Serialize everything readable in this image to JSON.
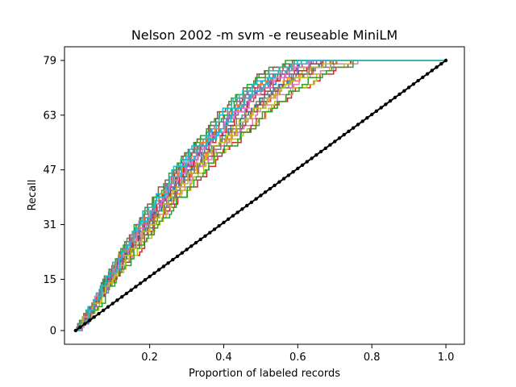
{
  "chart_data": {
    "type": "line",
    "title": "Nelson 2002 -m svm -e reuseable MiniLM",
    "xlabel": "Proportion of labeled records",
    "ylabel": "Recall",
    "xlim": [
      -0.03,
      1.05
    ],
    "ylim": [
      -4,
      83
    ],
    "x_ticks": [
      {
        "value": 0.2,
        "label": "0.2"
      },
      {
        "value": 0.4,
        "label": "0.4"
      },
      {
        "value": 0.6,
        "label": "0.6"
      },
      {
        "value": 0.8,
        "label": "0.8"
      },
      {
        "value": 1.0,
        "label": "1.0"
      }
    ],
    "y_ticks": [
      {
        "value": 0,
        "label": "0"
      },
      {
        "value": 15,
        "label": "15"
      },
      {
        "value": 31,
        "label": "31"
      },
      {
        "value": 47,
        "label": "47"
      },
      {
        "value": 63,
        "label": "63"
      },
      {
        "value": 79,
        "label": "79"
      }
    ],
    "grid": false,
    "legend": "none",
    "total_relevant": 79,
    "simulation_runs": 30,
    "series_colors": [
      "#1f77b4",
      "#ff7f0e",
      "#2ca02c",
      "#d62728",
      "#9467bd",
      "#8c564b",
      "#e377c2",
      "#7f7f7f",
      "#bcbd22",
      "#17becf"
    ],
    "random_baseline": {
      "color": "#000000",
      "x": [
        0.0,
        1.0
      ],
      "y": [
        0,
        79
      ]
    },
    "recall_curve_shape": {
      "x": [
        0.0,
        0.05,
        0.1,
        0.15,
        0.2,
        0.25,
        0.3,
        0.35,
        0.4,
        0.45,
        0.5,
        0.55,
        0.6,
        0.65,
        0.7,
        1.0
      ],
      "y": [
        0,
        8,
        17,
        25,
        33,
        40,
        47,
        53,
        58,
        64,
        69,
        73,
        76,
        78,
        79,
        79
      ]
    }
  }
}
